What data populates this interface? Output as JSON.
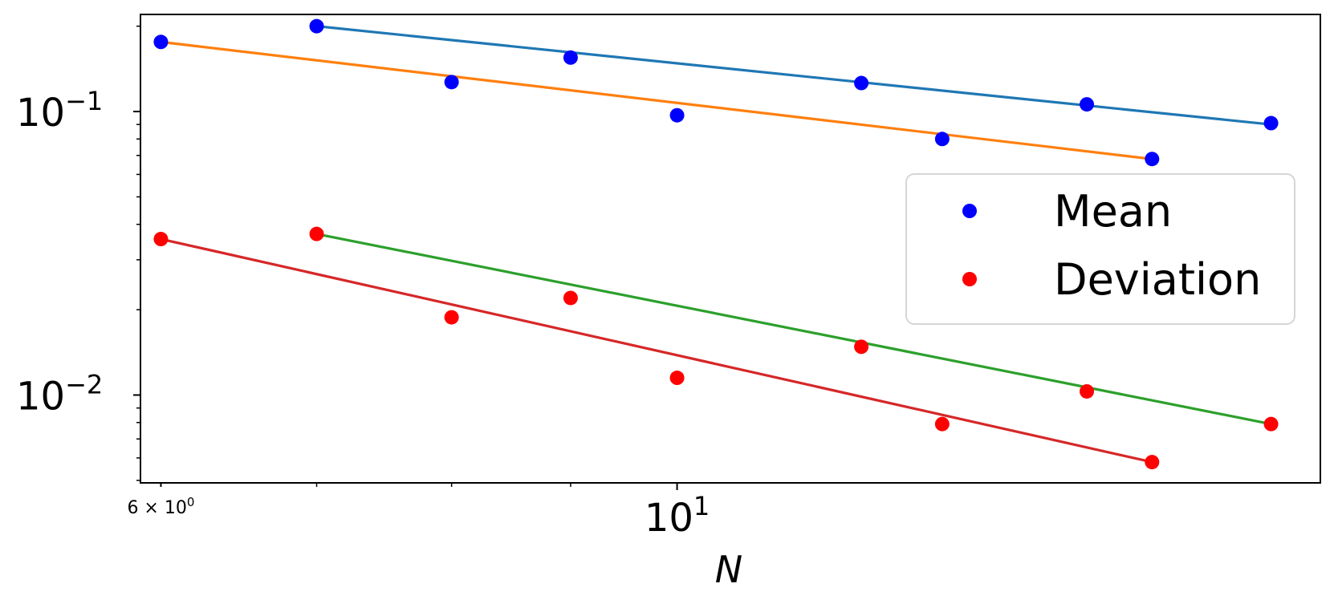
{
  "chart_data": {
    "type": "scatter",
    "title": "",
    "xlabel": "N",
    "ylabel": "",
    "xscale": "log",
    "yscale": "log",
    "xlim": [
      5.88,
      18.9
    ],
    "ylim": [
      0.0049,
      0.22
    ],
    "grid": false,
    "legend": {
      "placement": "center-right",
      "entries": [
        {
          "label": "Mean",
          "color": "#0000ff"
        },
        {
          "label": "Deviation",
          "color": "#ff0000"
        }
      ]
    },
    "x_major_ticks": [
      {
        "value": 6,
        "base": "6 × 10",
        "exp": "0",
        "minor": true
      },
      {
        "value": 10,
        "base": "10",
        "exp": "1",
        "minor": false
      }
    ],
    "x_minor_ticks_unlabeled": [
      7,
      8,
      9
    ],
    "y_major_ticks": [
      {
        "value": 0.1,
        "base": "10",
        "exp": "−1"
      },
      {
        "value": 0.01,
        "base": "10",
        "exp": "−2"
      }
    ],
    "scatter_series": [
      {
        "group": "Mean",
        "color": "#0000ff",
        "x": [
          7,
          9,
          12,
          15,
          18
        ],
        "y": [
          0.2,
          0.155,
          0.126,
          0.106,
          0.091
        ]
      },
      {
        "group": "Mean",
        "color": "#0000ff",
        "x": [
          6,
          8,
          10,
          13,
          16
        ],
        "y": [
          0.176,
          0.127,
          0.097,
          0.08,
          0.068
        ]
      },
      {
        "group": "Deviation",
        "color": "#ff0000",
        "x": [
          7,
          9,
          12,
          15,
          18
        ],
        "y": [
          0.037,
          0.022,
          0.0148,
          0.0103,
          0.0079
        ]
      },
      {
        "group": "Deviation",
        "color": "#ff0000",
        "x": [
          6,
          8,
          10,
          13,
          16
        ],
        "y": [
          0.0355,
          0.0188,
          0.0115,
          0.0079,
          0.0058
        ]
      }
    ],
    "fit_lines": [
      {
        "color": "#1f77b4",
        "x": [
          7,
          18
        ],
        "y": [
          0.2,
          0.09
        ]
      },
      {
        "color": "#ff7f0e",
        "x": [
          6,
          16
        ],
        "y": [
          0.176,
          0.068
        ]
      },
      {
        "color": "#2ca02c",
        "x": [
          7,
          18
        ],
        "y": [
          0.037,
          0.0079
        ]
      },
      {
        "color": "#d62728",
        "x": [
          6,
          16
        ],
        "y": [
          0.0355,
          0.0058
        ]
      }
    ]
  }
}
